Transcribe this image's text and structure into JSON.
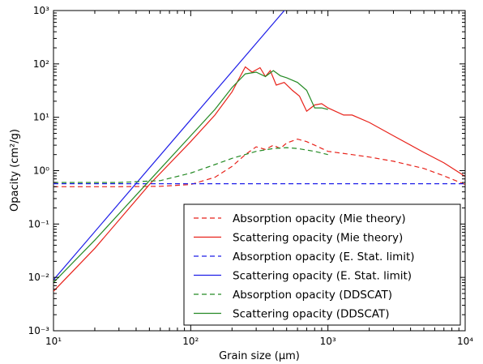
{
  "chart_data": {
    "type": "line",
    "xlabel": "Grain size (μm)",
    "ylabel": "Opacity (cm²/g)",
    "xscale": "log",
    "yscale": "log",
    "xlim": [
      10,
      10000
    ],
    "ylim": [
      0.001,
      1000
    ],
    "grid": false,
    "legend_position": "lower-right",
    "x_tick_labels": [
      "10¹",
      "10²",
      "10³",
      "10⁴"
    ],
    "y_tick_labels": [
      "10⁻³",
      "10⁻²",
      "10⁻¹",
      "10⁰",
      "10¹",
      "10²",
      "10³"
    ],
    "series": [
      {
        "name": "Absorption opacity (Mie theory)",
        "color": "#e8221a",
        "dash": "dashed",
        "x": [
          10,
          30,
          60,
          100,
          150,
          200,
          250,
          300,
          350,
          400,
          450,
          500,
          600,
          700,
          800,
          1000,
          1500,
          2000,
          3000,
          5000,
          7000,
          10000
        ],
        "y": [
          0.5,
          0.5,
          0.51,
          0.55,
          0.75,
          1.2,
          2.0,
          2.8,
          2.5,
          3.0,
          2.6,
          3.3,
          3.9,
          3.5,
          3.0,
          2.3,
          2.0,
          1.8,
          1.5,
          1.1,
          0.8,
          0.55
        ]
      },
      {
        "name": "Scattering opacity (Mie theory)",
        "color": "#e8221a",
        "dash": "solid",
        "x": [
          10,
          20,
          50,
          100,
          150,
          200,
          250,
          280,
          320,
          350,
          380,
          420,
          480,
          550,
          620,
          700,
          800,
          900,
          1000,
          1300,
          1500,
          2000,
          3000,
          5000,
          7000,
          10000
        ],
        "y": [
          0.0055,
          0.035,
          0.55,
          3.5,
          11,
          30,
          88,
          70,
          85,
          58,
          75,
          40,
          45,
          32,
          25,
          13,
          17,
          18,
          15,
          11,
          11,
          8,
          4.5,
          2.2,
          1.4,
          0.78
        ]
      },
      {
        "name": "Absorption opacity (E. Stat. limit)",
        "color": "#1f1fe8",
        "dash": "dashed",
        "x": [
          10,
          10000
        ],
        "y": [
          0.57,
          0.57
        ]
      },
      {
        "name": "Scattering opacity (E. Stat. limit)",
        "color": "#1f1fe8",
        "dash": "solid",
        "x": [
          10,
          100,
          1000
        ],
        "y": [
          0.009,
          9,
          9000
        ]
      },
      {
        "name": "Absorption opacity (DDSCAT)",
        "color": "#248a24",
        "dash": "dashed",
        "x": [
          10,
          30,
          60,
          100,
          150,
          200,
          300,
          400,
          500,
          600,
          800,
          1000
        ],
        "y": [
          0.6,
          0.6,
          0.65,
          0.9,
          1.3,
          1.7,
          2.3,
          2.6,
          2.7,
          2.6,
          2.3,
          2.0
        ]
      },
      {
        "name": "Scattering opacity (DDSCAT)",
        "color": "#248a24",
        "dash": "solid",
        "x": [
          10,
          20,
          50,
          100,
          150,
          200,
          250,
          300,
          350,
          400,
          450,
          500,
          600,
          700,
          800,
          900,
          1000
        ],
        "y": [
          0.008,
          0.05,
          0.65,
          4.5,
          14,
          36,
          65,
          70,
          58,
          75,
          60,
          55,
          45,
          32,
          15,
          15,
          14
        ]
      }
    ]
  }
}
